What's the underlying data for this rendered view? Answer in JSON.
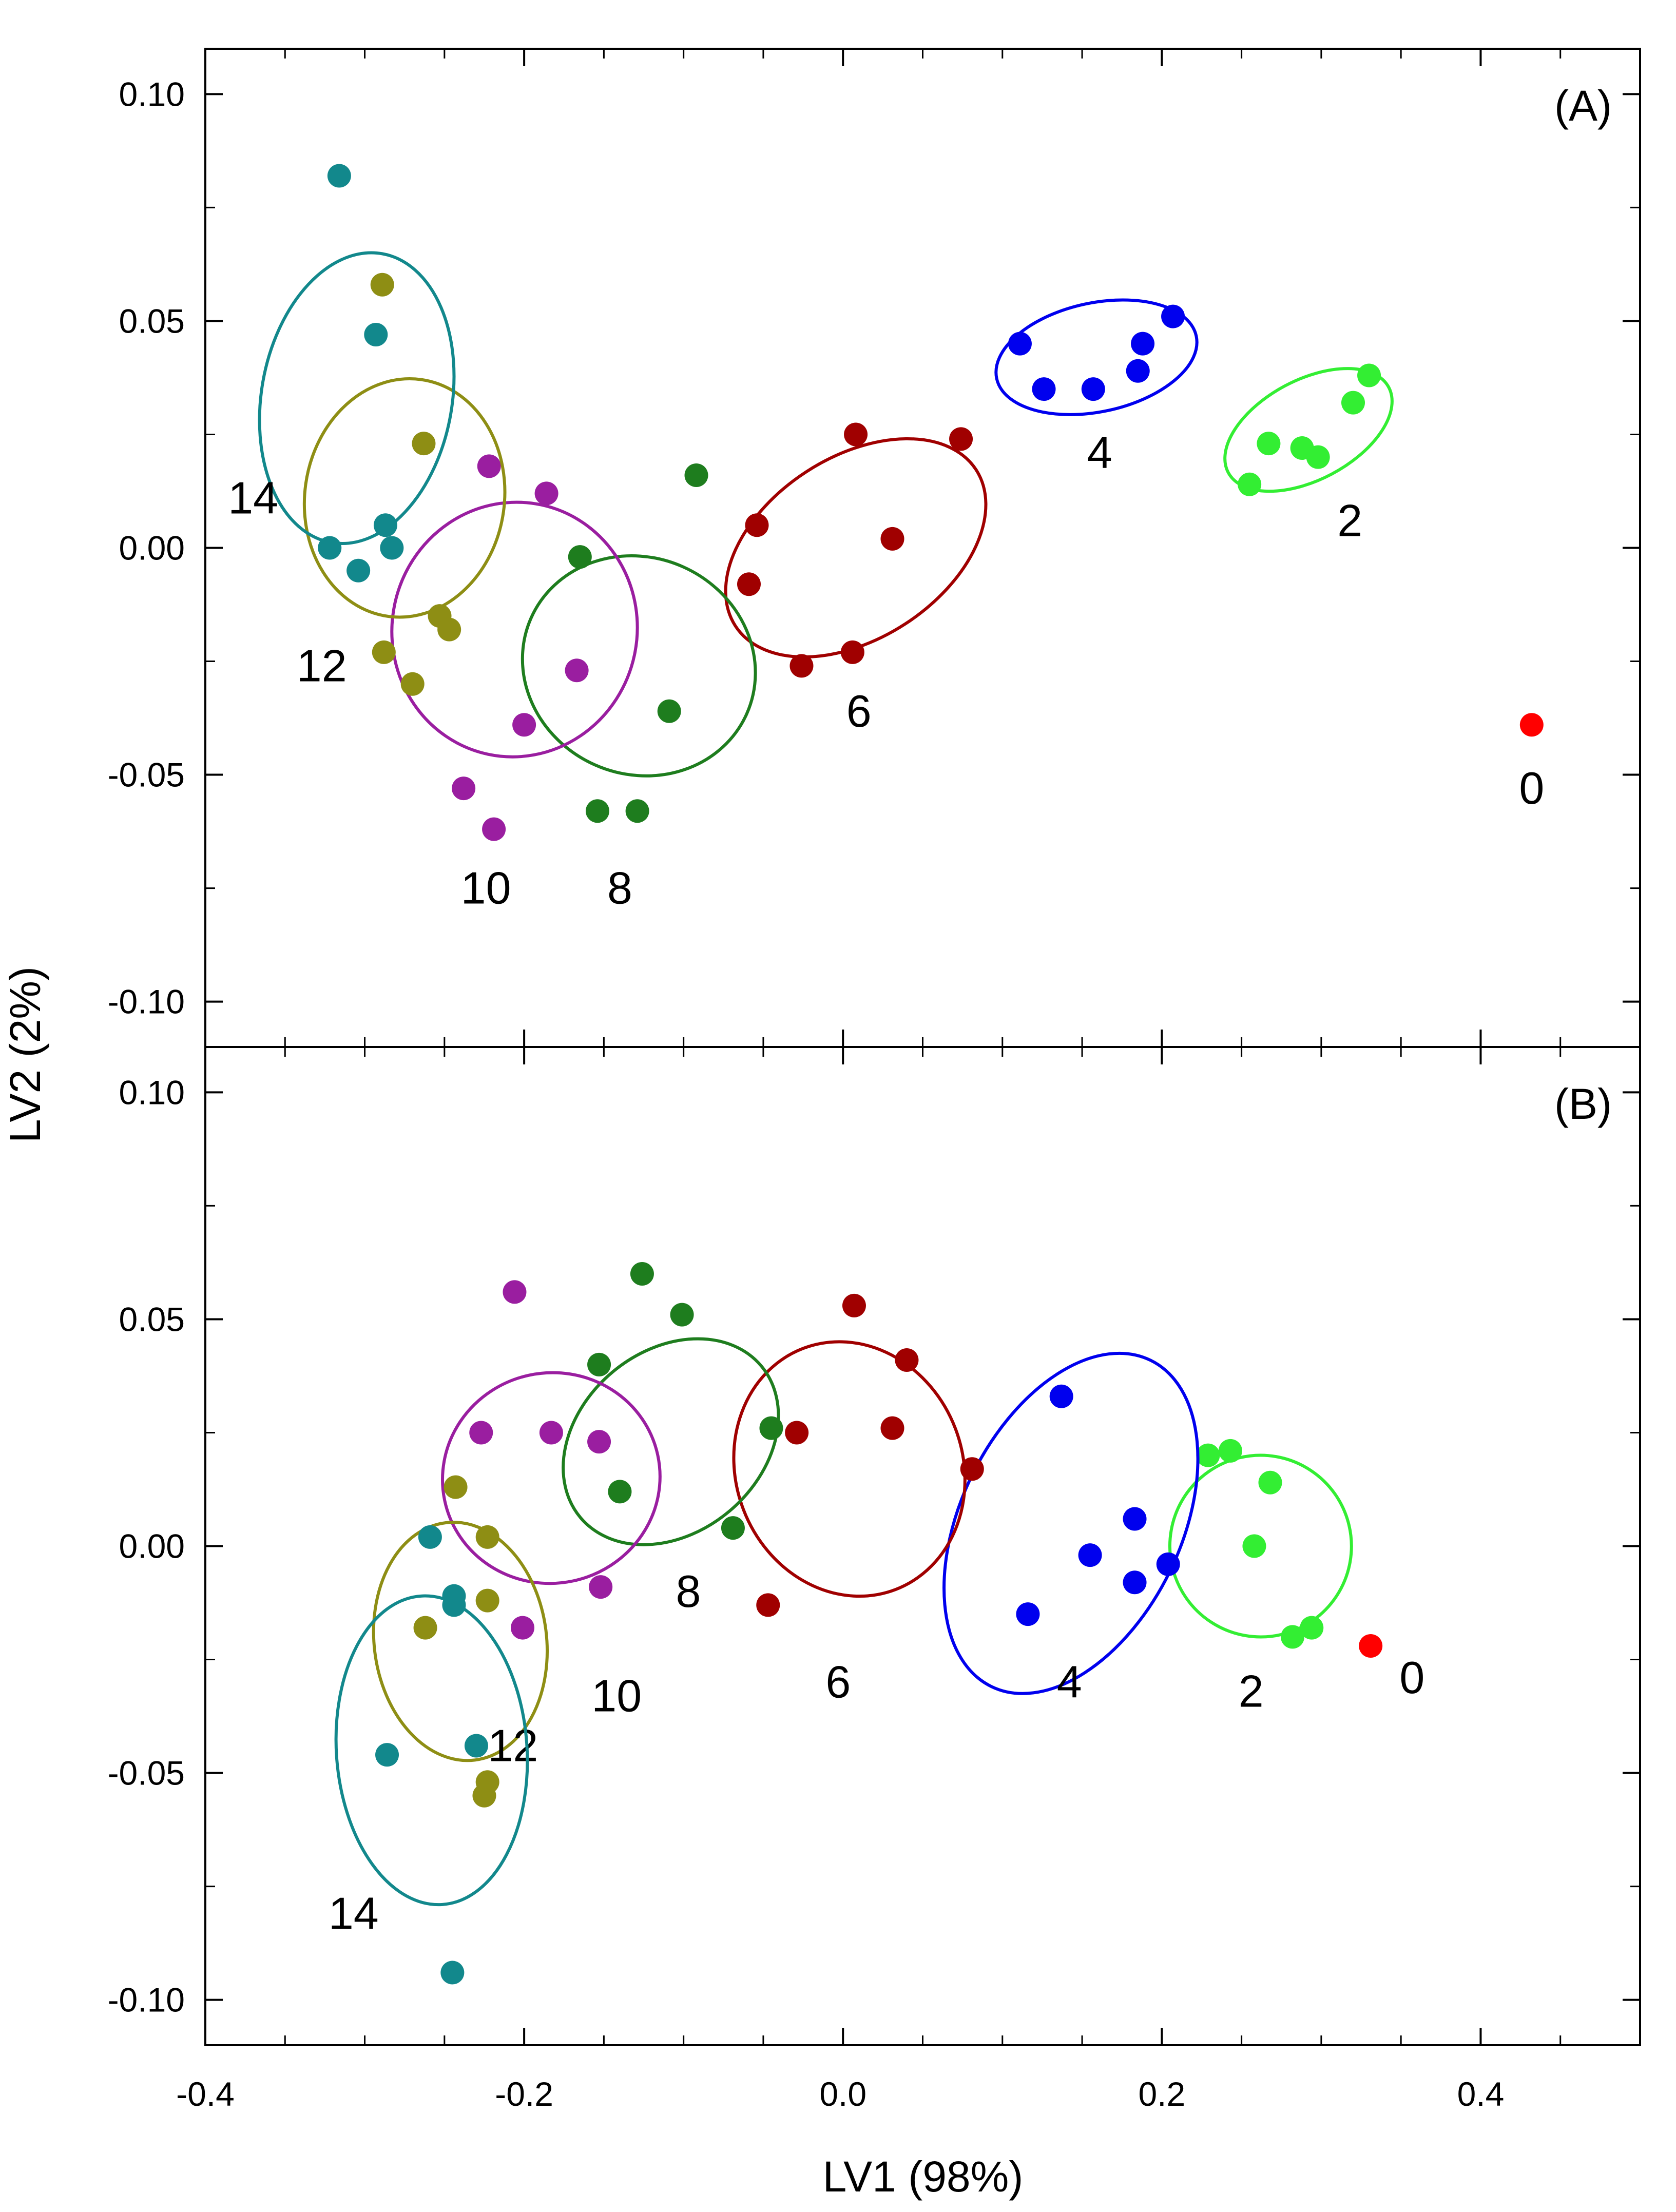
{
  "chart_data": {
    "type": "scatter",
    "xlabel": "LV1 (98%)",
    "ylabel": "LV2 (2%)",
    "xlim": [
      -0.4,
      0.5
    ],
    "ylim": [
      -0.11,
      0.11
    ],
    "xticks": [
      -0.4,
      -0.2,
      0.0,
      0.2,
      0.4
    ],
    "xtick_labels": [
      "-0.4",
      "-0.2",
      "0.0",
      "0.2",
      "0.4"
    ],
    "yticks": [
      -0.1,
      -0.05,
      0.0,
      0.05,
      0.1
    ],
    "ytick_labels": [
      "-0.10",
      "-0.05",
      "0.00",
      "0.05",
      "0.10"
    ],
    "panels": [
      {
        "label": "(A)",
        "groups": [
          {
            "name": "0",
            "color": "#ff0000",
            "points": [
              [
                0.432,
                -0.039
              ]
            ],
            "ellipse": null,
            "label_pos": [
              0.432,
              -0.053
            ]
          },
          {
            "name": "2",
            "color": "#33ee33",
            "points": [
              [
                0.255,
                0.014
              ],
              [
                0.267,
                0.023
              ],
              [
                0.288,
                0.022
              ],
              [
                0.298,
                0.02
              ],
              [
                0.32,
                0.032
              ],
              [
                0.33,
                0.038
              ]
            ],
            "ellipse": {
              "cx": 0.292,
              "cy": 0.026,
              "rx": 0.057,
              "ry": 0.011,
              "angle": 28
            },
            "label_pos": [
              0.318,
              0.006
            ]
          },
          {
            "name": "4",
            "color": "#0000ee",
            "points": [
              [
                0.111,
                0.045
              ],
              [
                0.126,
                0.035
              ],
              [
                0.157,
                0.035
              ],
              [
                0.185,
                0.039
              ],
              [
                0.188,
                0.045
              ],
              [
                0.207,
                0.051
              ]
            ],
            "ellipse": {
              "cx": 0.159,
              "cy": 0.042,
              "rx": 0.064,
              "ry": 0.012,
              "angle": 12
            },
            "label_pos": [
              0.161,
              0.021
            ]
          },
          {
            "name": "6",
            "color": "#a00000",
            "points": [
              [
                -0.054,
                0.005
              ],
              [
                -0.059,
                -0.008
              ],
              [
                -0.026,
                -0.026
              ],
              [
                0.006,
                -0.023
              ],
              [
                0.008,
                0.025
              ],
              [
                0.031,
                0.002
              ],
              [
                0.074,
                0.024
              ]
            ],
            "ellipse": {
              "cx": 0.008,
              "cy": 0.0,
              "rx": 0.09,
              "ry": 0.02,
              "angle": 33
            },
            "label_pos": [
              0.01,
              -0.036
            ]
          },
          {
            "name": "8",
            "color": "#1e7d1e",
            "points": [
              [
                -0.092,
                0.016
              ],
              [
                -0.165,
                -0.002
              ],
              [
                -0.109,
                -0.036
              ],
              [
                -0.154,
                -0.058
              ],
              [
                -0.129,
                -0.058
              ]
            ],
            "ellipse": {
              "cx": -0.128,
              "cy": -0.026,
              "rx": 0.068,
              "ry": 0.026,
              "angle": 66
            },
            "label_pos": [
              -0.14,
              -0.075
            ]
          },
          {
            "name": "10",
            "color": "#9a1ea0",
            "points": [
              [
                -0.222,
                0.018
              ],
              [
                -0.186,
                0.012
              ],
              [
                -0.167,
                -0.027
              ],
              [
                -0.2,
                -0.039
              ],
              [
                -0.238,
                -0.053
              ],
              [
                -0.219,
                -0.062
              ]
            ],
            "ellipse": {
              "cx": -0.206,
              "cy": -0.018,
              "rx": 0.08,
              "ry": 0.027,
              "angle": 78
            },
            "label_pos": [
              -0.224,
              -0.075
            ]
          },
          {
            "name": "12",
            "color": "#8e8e14",
            "points": [
              [
                -0.289,
                0.058
              ],
              [
                -0.263,
                0.023
              ],
              [
                -0.253,
                -0.015
              ],
              [
                -0.247,
                -0.018
              ],
              [
                -0.288,
                -0.023
              ],
              [
                -0.27,
                -0.03
              ]
            ],
            "ellipse": {
              "cx": -0.275,
              "cy": 0.011,
              "rx": 0.075,
              "ry": 0.022,
              "angle": 82
            },
            "label_pos": [
              -0.327,
              -0.026
            ]
          },
          {
            "name": "14",
            "color": "#12888c",
            "points": [
              [
                -0.316,
                0.082
              ],
              [
                -0.293,
                0.047
              ],
              [
                -0.287,
                0.005
              ],
              [
                -0.283,
                0.0
              ],
              [
                -0.322,
                0.0
              ],
              [
                -0.304,
                -0.005
              ]
            ],
            "ellipse": {
              "cx": -0.305,
              "cy": 0.033,
              "rx": 0.092,
              "ry": 0.021,
              "angle": 80
            },
            "label_pos": [
              -0.37,
              0.011
            ]
          }
        ]
      },
      {
        "label": "(B)",
        "groups": [
          {
            "name": "0",
            "color": "#ff0000",
            "points": [
              [
                0.331,
                -0.022
              ]
            ],
            "ellipse": null,
            "label_pos": [
              0.357,
              -0.029
            ]
          },
          {
            "name": "2",
            "color": "#33ee33",
            "points": [
              [
                0.229,
                0.02
              ],
              [
                0.243,
                0.021
              ],
              [
                0.268,
                0.014
              ],
              [
                0.258,
                0.0
              ],
              [
                0.282,
                -0.02
              ],
              [
                0.294,
                -0.018
              ]
            ],
            "ellipse": {
              "cx": 0.262,
              "cy": 0.0,
              "rx": 0.057,
              "ry": 0.02,
              "angle": -55
            },
            "label_pos": [
              0.256,
              -0.032
            ]
          },
          {
            "name": "4",
            "color": "#0000ee",
            "points": [
              [
                0.137,
                0.033
              ],
              [
                0.183,
                0.006
              ],
              [
                0.155,
                -0.002
              ],
              [
                0.204,
                -0.004
              ],
              [
                0.183,
                -0.008
              ],
              [
                0.116,
                -0.015
              ]
            ],
            "ellipse": {
              "cx": 0.143,
              "cy": 0.005,
              "rx": 0.069,
              "ry": 0.04,
              "angle": -26
            },
            "label_pos": [
              0.142,
              -0.03
            ]
          },
          {
            "name": "6",
            "color": "#a00000",
            "points": [
              [
                0.007,
                0.053
              ],
              [
                0.04,
                0.041
              ],
              [
                -0.029,
                0.025
              ],
              [
                0.031,
                0.026
              ],
              [
                0.081,
                0.017
              ],
              [
                -0.047,
                -0.013
              ]
            ],
            "ellipse": {
              "cx": 0.004,
              "cy": 0.017,
              "rx": 0.081,
              "ry": 0.025,
              "angle": -69
            },
            "label_pos": [
              -0.003,
              -0.03
            ]
          },
          {
            "name": "8",
            "color": "#1e7d1e",
            "points": [
              [
                -0.126,
                0.06
              ],
              [
                -0.101,
                0.051
              ],
              [
                -0.153,
                0.04
              ],
              [
                -0.045,
                0.026
              ],
              [
                -0.14,
                0.012
              ],
              [
                -0.069,
                0.004
              ]
            ],
            "ellipse": {
              "cx": -0.108,
              "cy": 0.023,
              "rx": 0.057,
              "ry": 0.026,
              "angle": -50
            },
            "label_pos": [
              -0.097,
              -0.01
            ]
          },
          {
            "name": "10",
            "color": "#9a1ea0",
            "points": [
              [
                -0.206,
                0.056
              ],
              [
                -0.227,
                0.025
              ],
              [
                -0.183,
                0.025
              ],
              [
                -0.153,
                0.023
              ],
              [
                -0.152,
                -0.009
              ],
              [
                -0.201,
                -0.018
              ]
            ],
            "ellipse": {
              "cx": -0.183,
              "cy": 0.015,
              "rx": 0.066,
              "ry": 0.024,
              "angle": -78
            },
            "label_pos": [
              -0.142,
              -0.033
            ]
          },
          {
            "name": "12",
            "color": "#8e8e14",
            "points": [
              [
                -0.243,
                0.013
              ],
              [
                -0.223,
                0.002
              ],
              [
                -0.223,
                -0.012
              ],
              [
                -0.262,
                -0.018
              ],
              [
                -0.223,
                -0.052
              ],
              [
                -0.225,
                -0.055
              ]
            ],
            "ellipse": {
              "cx": -0.24,
              "cy": -0.021,
              "rx": 0.075,
              "ry": 0.019,
              "angle": -83
            },
            "label_pos": [
              -0.207,
              -0.044
            ]
          },
          {
            "name": "14",
            "color": "#12888c",
            "points": [
              [
                -0.259,
                0.002
              ],
              [
                -0.244,
                -0.011
              ],
              [
                -0.244,
                -0.013
              ],
              [
                -0.286,
                -0.046
              ],
              [
                -0.23,
                -0.044
              ],
              [
                -0.245,
                -0.094
              ]
            ],
            "ellipse": {
              "cx": -0.258,
              "cy": -0.045,
              "rx": 0.097,
              "ry": 0.021,
              "angle": -86
            },
            "label_pos": [
              -0.307,
              -0.081
            ]
          }
        ]
      }
    ]
  }
}
